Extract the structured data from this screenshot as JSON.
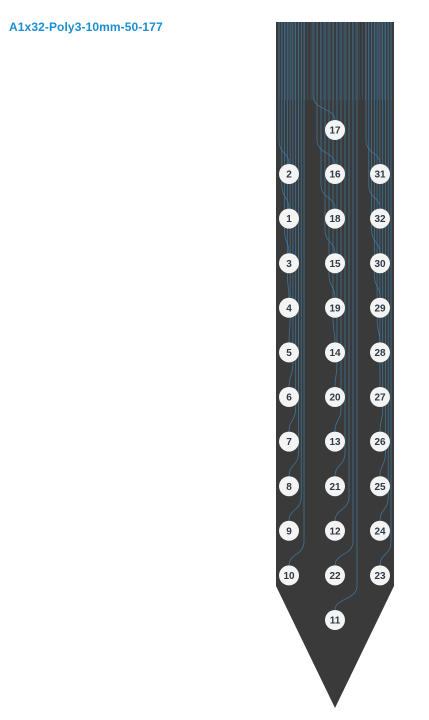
{
  "title": "A1x32-Poly3-10mm-50-177",
  "colors": {
    "title": "#1a8fd1",
    "shank": "#3a3a3b",
    "trace": "#3f7ea4",
    "site_fill": "#f4f4f4",
    "site_text": "#2e3a47"
  },
  "columns": {
    "left": [
      "2",
      "1",
      "3",
      "4",
      "5",
      "6",
      "7",
      "8",
      "9",
      "10"
    ],
    "center_top": "17",
    "center": [
      "16",
      "18",
      "15",
      "19",
      "14",
      "20",
      "13",
      "21",
      "12",
      "22"
    ],
    "center_bottom": "11",
    "right": [
      "31",
      "32",
      "30",
      "29",
      "28",
      "27",
      "26",
      "25",
      "24",
      "23"
    ]
  }
}
